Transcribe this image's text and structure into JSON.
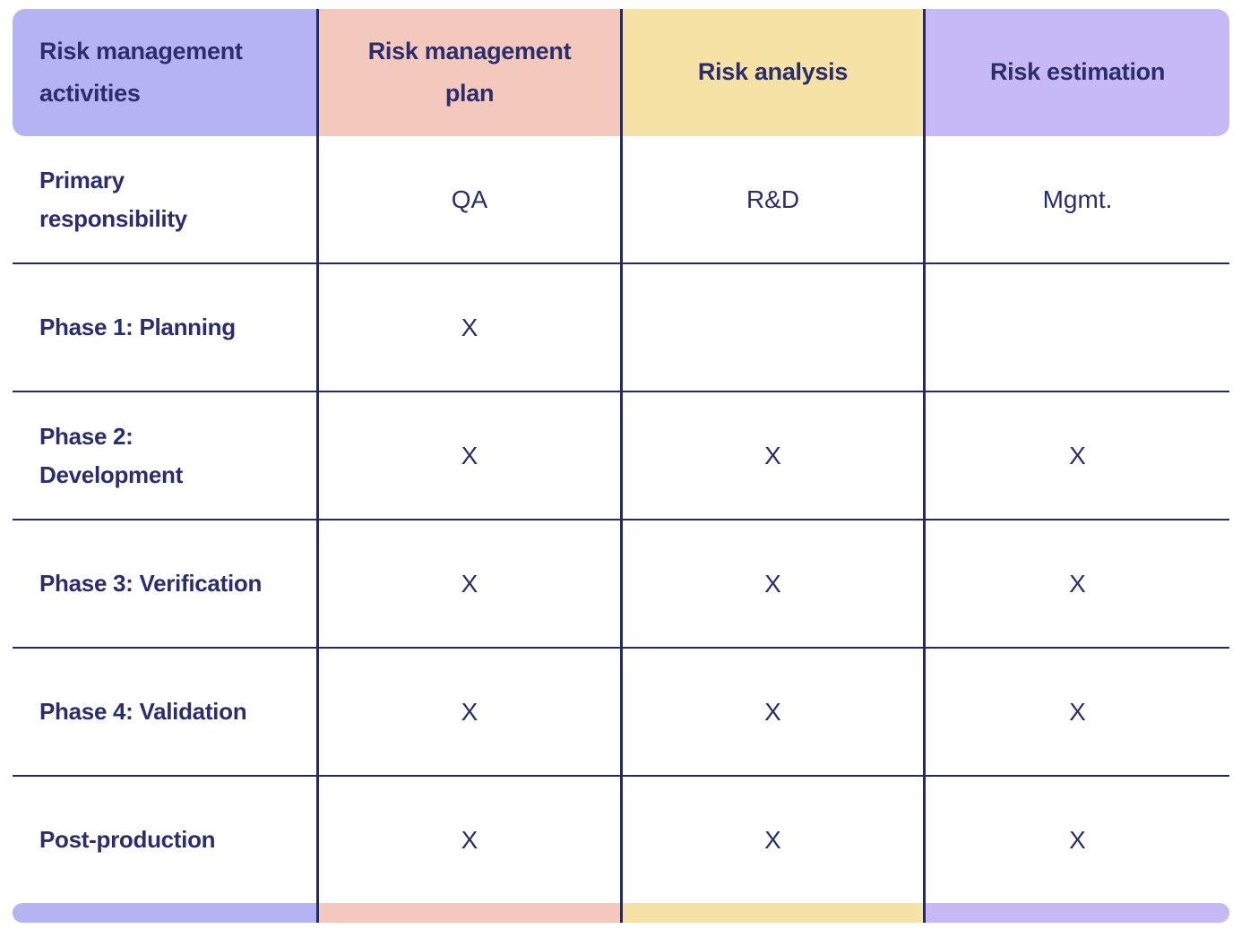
{
  "colors": {
    "text_navy": "#2b2d6d",
    "line_navy": "#232a67",
    "col1_periwinkle": "#b5b4f2",
    "col2_salmon": "#f4c9bd",
    "col3_yellow": "#f5e2a4",
    "col4_purple": "#c7b8f6",
    "background": "#ffffff"
  },
  "header": {
    "cells": [
      {
        "label": "Risk management\nactivities",
        "bg": "#b5b4f2"
      },
      {
        "label": "Risk management\nplan",
        "bg": "#f4c9bd"
      },
      {
        "label": "Risk analysis",
        "bg": "#f5e2a4"
      },
      {
        "label": "Risk estimation",
        "bg": "#c7b8f6"
      }
    ]
  },
  "rows": [
    {
      "label": "Primary\nresponsibility",
      "values": [
        "QA",
        "R&D",
        "Mgmt."
      ]
    },
    {
      "label": "Phase 1: Planning",
      "values": [
        "X",
        "",
        ""
      ]
    },
    {
      "label": "Phase 2:\nDevelopment",
      "values": [
        "X",
        "X",
        "X"
      ]
    },
    {
      "label": "Phase 3: Verification",
      "values": [
        "X",
        "X",
        "X"
      ]
    },
    {
      "label": "Phase 4: Validation",
      "values": [
        "X",
        "X",
        "X"
      ]
    },
    {
      "label": "Post-production",
      "values": [
        "X",
        "X",
        "X"
      ]
    }
  ],
  "chart_data": {
    "type": "table",
    "column_headers": [
      "Risk management activities",
      "Risk management plan",
      "Risk analysis",
      "Risk estimation"
    ],
    "rows": [
      [
        "Primary responsibility",
        "QA",
        "R&D",
        "Mgmt."
      ],
      [
        "Phase 1: Planning",
        "X",
        "",
        ""
      ],
      [
        "Phase 2: Development",
        "X",
        "X",
        "X"
      ],
      [
        "Phase 3: Verification",
        "X",
        "X",
        "X"
      ],
      [
        "Phase 4: Validation",
        "X",
        "X",
        "X"
      ],
      [
        "Post-production",
        "X",
        "X",
        "X"
      ]
    ],
    "notes_layout": "matrix table; first header cell rounded on left, last header cell rounded on right; colored accent bar across bottom matching column header colors"
  }
}
